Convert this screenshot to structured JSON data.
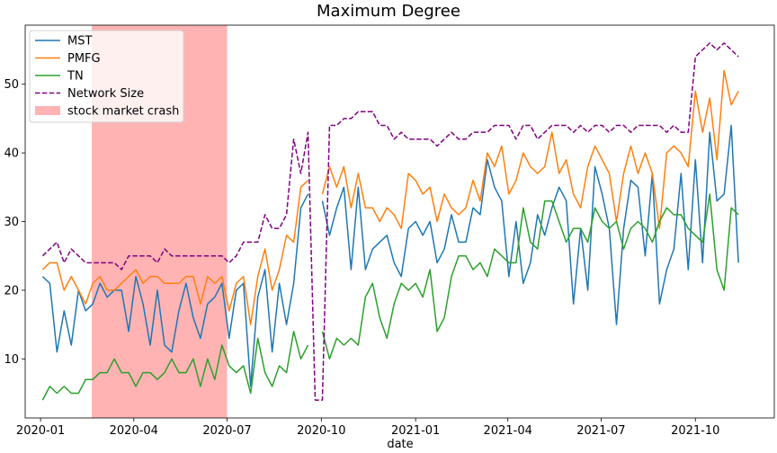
{
  "chart_data": {
    "type": "line",
    "title": "Maximum Degree",
    "xlabel": "date",
    "ylabel": "",
    "x_type": "date",
    "xlim": [
      "2019-12-17",
      "2021-12-17"
    ],
    "ylim": [
      1.4,
      58.6
    ],
    "x_ticks": [
      "2020-01-01",
      "2020-04-01",
      "2020-07-01",
      "2020-10-01",
      "2021-01-01",
      "2021-04-01",
      "2021-07-01",
      "2021-10-01"
    ],
    "x_tick_labels": [
      "2020-01",
      "2020-04",
      "2020-07",
      "2020-10",
      "2021-01",
      "2021-04",
      "2021-07",
      "2021-10"
    ],
    "y_ticks": [
      10,
      20,
      30,
      40,
      50
    ],
    "y_tick_labels": [
      "10",
      "20",
      "30",
      "40",
      "50"
    ],
    "legend_position": "upper-left",
    "shaded_region": {
      "label": "stock market crash",
      "start": "2020-02-20",
      "end": "2020-07-01",
      "color": "#ffb3b3"
    },
    "dates": [
      "2020-01-03",
      "2020-01-10",
      "2020-01-17",
      "2020-01-24",
      "2020-01-31",
      "2020-02-07",
      "2020-02-14",
      "2020-02-21",
      "2020-02-28",
      "2020-03-06",
      "2020-03-13",
      "2020-03-20",
      "2020-03-27",
      "2020-04-03",
      "2020-04-10",
      "2020-04-17",
      "2020-04-24",
      "2020-05-01",
      "2020-05-08",
      "2020-05-15",
      "2020-05-22",
      "2020-05-29",
      "2020-06-05",
      "2020-06-12",
      "2020-06-19",
      "2020-06-26",
      "2020-07-03",
      "2020-07-10",
      "2020-07-17",
      "2020-07-24",
      "2020-07-31",
      "2020-08-07",
      "2020-08-14",
      "2020-08-21",
      "2020-08-28",
      "2020-09-04",
      "2020-09-11",
      "2020-09-18",
      "2020-09-25",
      "2020-10-02",
      "2020-10-09",
      "2020-10-16",
      "2020-10-23",
      "2020-10-30",
      "2020-11-06",
      "2020-11-13",
      "2020-11-20",
      "2020-11-27",
      "2020-12-04",
      "2020-12-11",
      "2020-12-18",
      "2020-12-25",
      "2021-01-01",
      "2021-01-08",
      "2021-01-15",
      "2021-01-22",
      "2021-01-29",
      "2021-02-05",
      "2021-02-12",
      "2021-02-19",
      "2021-02-26",
      "2021-03-05",
      "2021-03-12",
      "2021-03-19",
      "2021-03-26",
      "2021-04-02",
      "2021-04-09",
      "2021-04-16",
      "2021-04-23",
      "2021-04-30",
      "2021-05-07",
      "2021-05-14",
      "2021-05-21",
      "2021-05-28",
      "2021-06-04",
      "2021-06-11",
      "2021-06-18",
      "2021-06-25",
      "2021-07-02",
      "2021-07-09",
      "2021-07-16",
      "2021-07-23",
      "2021-07-30",
      "2021-08-06",
      "2021-08-13",
      "2021-08-20",
      "2021-08-27",
      "2021-09-03",
      "2021-09-10",
      "2021-09-17",
      "2021-09-24",
      "2021-10-01",
      "2021-10-08",
      "2021-10-15",
      "2021-10-22",
      "2021-10-29",
      "2021-11-05",
      "2021-11-12",
      "2021-11-19",
      "2021-11-26"
    ],
    "series": [
      {
        "name": "MST",
        "color": "#1f77b4",
        "style": "solid",
        "values": [
          22,
          21,
          11,
          17,
          12,
          20,
          17,
          18,
          21,
          19,
          20,
          20,
          14,
          22,
          18,
          12,
          20,
          12,
          11,
          17,
          21,
          16,
          13,
          18,
          19,
          21,
          13,
          20,
          21,
          6,
          19,
          23,
          11,
          21,
          15,
          21,
          32,
          34,
          null,
          33,
          28,
          32,
          35,
          23,
          35,
          23,
          26,
          27,
          28,
          24,
          22,
          29,
          30,
          28,
          30,
          24,
          26,
          31,
          27,
          27,
          32,
          31,
          39,
          35,
          33,
          22,
          30,
          21,
          24,
          31,
          28,
          32,
          35,
          33,
          18,
          29,
          20,
          38,
          34,
          29,
          15,
          29,
          36,
          35,
          25,
          37,
          18,
          23,
          26,
          37,
          23,
          39,
          24,
          43,
          33,
          34,
          44,
          24,
          null,
          null
        ]
      },
      {
        "name": "PMFG",
        "color": "#ff7f0e",
        "style": "solid",
        "values": [
          23,
          24,
          24,
          20,
          22,
          20,
          18,
          21,
          22,
          20,
          20,
          21,
          22,
          23,
          21,
          22,
          22,
          21,
          21,
          21,
          22,
          22,
          18,
          22,
          21,
          22,
          17,
          21,
          22,
          15,
          22,
          26,
          20,
          23,
          28,
          27,
          35,
          36,
          null,
          34,
          38,
          35,
          38,
          32,
          37,
          32,
          32,
          30,
          32,
          31,
          29,
          37,
          36,
          34,
          35,
          30,
          34,
          32,
          31,
          32,
          36,
          33,
          40,
          38,
          41,
          34,
          36,
          40,
          38,
          37,
          38,
          43,
          37,
          39,
          34,
          32,
          38,
          41,
          39,
          37,
          30,
          37,
          41,
          37,
          40,
          37,
          29,
          40,
          41,
          40,
          38,
          49,
          43,
          48,
          39,
          52,
          47,
          49,
          null,
          null
        ]
      },
      {
        "name": "TN",
        "color": "#2ca02c",
        "style": "solid",
        "values": [
          4,
          6,
          5,
          6,
          5,
          5,
          7,
          7,
          8,
          8,
          10,
          8,
          8,
          6,
          8,
          8,
          7,
          8,
          10,
          8,
          8,
          10,
          6,
          10,
          7,
          12,
          9,
          8,
          9,
          5,
          13,
          8,
          6,
          9,
          8,
          14,
          10,
          12,
          null,
          14,
          10,
          13,
          12,
          13,
          12,
          19,
          21,
          16,
          13,
          18,
          21,
          20,
          21,
          19,
          23,
          14,
          16,
          22,
          25,
          25,
          23,
          24,
          22,
          26,
          25,
          24,
          24,
          32,
          27,
          26,
          33,
          33,
          30,
          27,
          29,
          29,
          27,
          32,
          30,
          29,
          30,
          26,
          29,
          30,
          29,
          27,
          30,
          32,
          31,
          31,
          29,
          28,
          27,
          34,
          23,
          20,
          32,
          31,
          null,
          null
        ]
      },
      {
        "name": "Network Size",
        "color": "#800080",
        "style": "dashed",
        "values": [
          25,
          26,
          27,
          24,
          26,
          25,
          24,
          24,
          24,
          24,
          24,
          23,
          25,
          25,
          25,
          25,
          24,
          26,
          25,
          25,
          25,
          25,
          25,
          25,
          25,
          25,
          24,
          25,
          27,
          27,
          27,
          31,
          29,
          29,
          31,
          42,
          37,
          43,
          4,
          4,
          44,
          44,
          45,
          45,
          46,
          46,
          46,
          44,
          44,
          42,
          43,
          42,
          42,
          42,
          42,
          41,
          42,
          43,
          42,
          42,
          43,
          43,
          43,
          44,
          44,
          44,
          42,
          44,
          44,
          42,
          43,
          44,
          44,
          44,
          43,
          44,
          43,
          44,
          44,
          43,
          44,
          44,
          43,
          44,
          44,
          44,
          44,
          43,
          44,
          43,
          43,
          54,
          55,
          56,
          55,
          56,
          55,
          54,
          null,
          null
        ]
      }
    ]
  }
}
